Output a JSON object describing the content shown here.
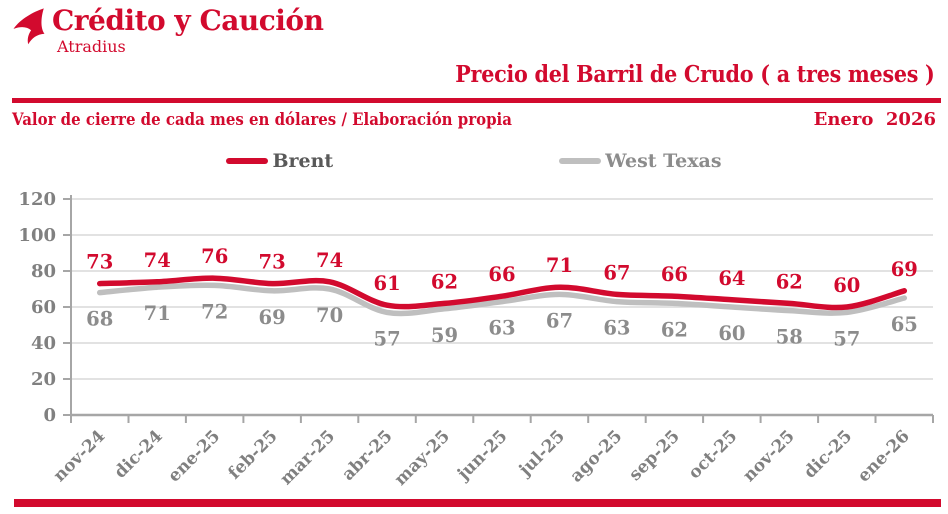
{
  "brand": {
    "logo_text": "Crédito y Caución",
    "logo_sub": "Atradius"
  },
  "header": {
    "title": "Precio del Barril de Crudo ( a tres meses )",
    "subtitle": "Valor de cierre de cada mes en dólares / Elaboración propia",
    "date": "Enero  2026"
  },
  "legend": [
    {
      "label": "Brent",
      "color": "#d20a2e"
    },
    {
      "label": "West Texas",
      "color": "#bfbfbf"
    }
  ],
  "colors": {
    "brand_red": "#d20a2e",
    "axis_line": "#a6a6a6",
    "gridline": "#d9d9d9",
    "axis_label": "#808080",
    "gray_series_label": "#8c8c8c"
  },
  "chart_data": {
    "type": "line",
    "title": "Precio del Barril de Crudo ( a tres meses )",
    "subtitle": "Valor de cierre de cada mes en dólares / Elaboración propia",
    "categories": [
      "nov-24",
      "dic-24",
      "ene-25",
      "feb-25",
      "mar-25",
      "abr-25",
      "may-25",
      "jun-25",
      "jul-25",
      "ago-25",
      "sep-25",
      "oct-25",
      "nov-25",
      "dic-25",
      "ene-26"
    ],
    "series": [
      {
        "name": "Brent",
        "color": "#d20a2e",
        "label_color": "#d20a2e",
        "values": [
          73,
          74,
          76,
          73,
          74,
          61,
          62,
          66,
          71,
          67,
          66,
          64,
          62,
          60,
          69
        ]
      },
      {
        "name": "West Texas",
        "color": "#bfbfbf",
        "label_color": "#8c8c8c",
        "values": [
          68,
          71,
          72,
          69,
          70,
          57,
          59,
          63,
          67,
          63,
          62,
          60,
          58,
          57,
          65
        ]
      }
    ],
    "xlabel": "",
    "ylabel": "",
    "ylim": [
      0,
      120
    ],
    "yticks": [
      0,
      20,
      40,
      60,
      80,
      100,
      120
    ],
    "grid": true,
    "legend_position": "top",
    "data_labels": true
  }
}
